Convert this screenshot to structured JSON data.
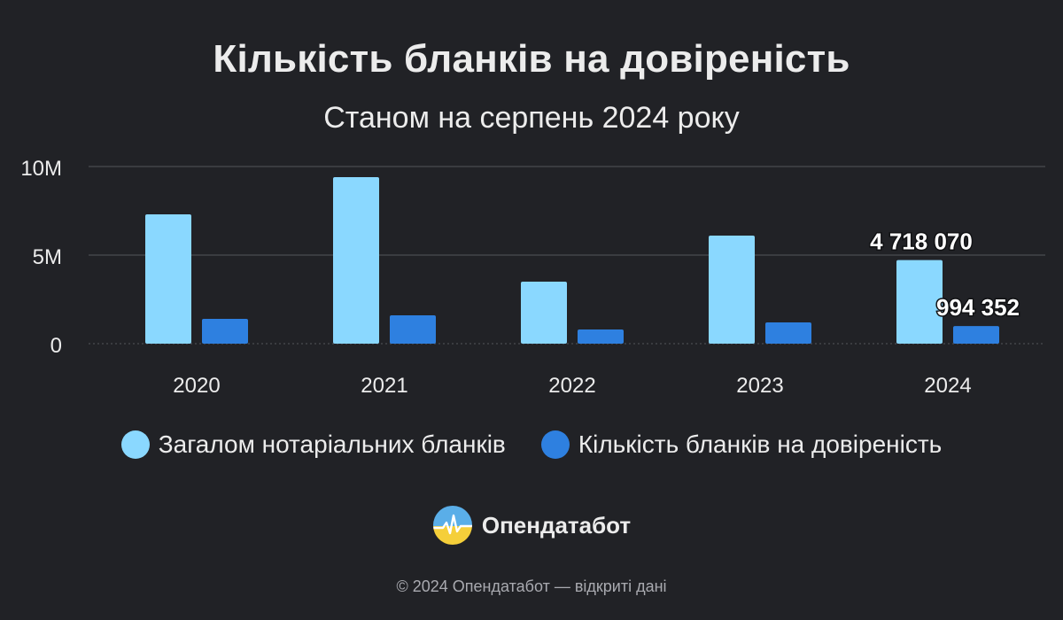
{
  "title": "Кількість бланків на довіреність",
  "subtitle": "Станом на серпень 2024 року",
  "chart_data": {
    "type": "bar",
    "title": "Кількість бланків на довіреність",
    "subtitle": "Станом на серпень 2024 року",
    "categories": [
      "2020",
      "2021",
      "2022",
      "2023",
      "2024"
    ],
    "series": [
      {
        "name": "Загалом нотаріальних бланків",
        "values": [
          7300000,
          9400000,
          3500000,
          6100000,
          4718070
        ],
        "color": "#8ad8ff"
      },
      {
        "name": "Кількість бланків на довіреність",
        "values": [
          1400000,
          1600000,
          800000,
          1200000,
          994352
        ],
        "color": "#2e80e0"
      }
    ],
    "ylim": [
      0,
      10000000
    ],
    "yticks": [
      0,
      5000000,
      10000000
    ],
    "ytick_labels": [
      "0",
      "5M",
      "10M"
    ],
    "grid": true,
    "legend_position": "bottom",
    "data_labels": [
      {
        "series": 0,
        "category": "2024",
        "text": "4 718 070"
      },
      {
        "series": 1,
        "category": "2024",
        "text": "994 352"
      }
    ]
  },
  "brand": {
    "name": "Опендатабот",
    "icon": "opendatabot-logo-icon"
  },
  "footer": "© 2024 Опендатабот — відкриті дані",
  "colors": {
    "background": "#212226",
    "grid": "#4a4b50",
    "text": "#ececec"
  }
}
